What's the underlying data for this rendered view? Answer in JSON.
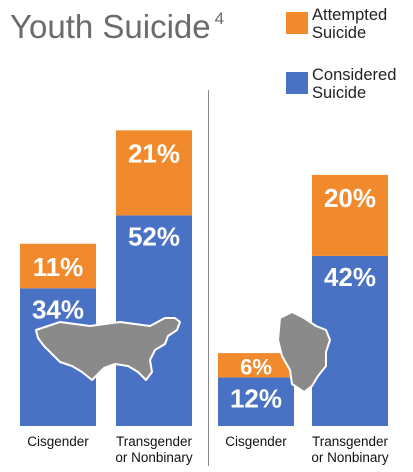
{
  "title": "Youth Suicide",
  "title_superscript": "4",
  "legend": [
    {
      "label_line1": "Attempted",
      "label_line2": "Suicide",
      "color": "#f08a2c"
    },
    {
      "label_line1": "Considered",
      "label_line2": "Suicide",
      "color": "#4a72c4"
    }
  ],
  "regions": [
    {
      "map_icon": "us-map-icon"
    },
    {
      "map_icon": "wisconsin-map-icon"
    }
  ],
  "chart_data": {
    "type": "bar",
    "title": "Youth Suicide",
    "groups": [
      {
        "region_icon": "us-map-icon",
        "categories": [
          "Cisgender",
          "Transgender or Nonbinary"
        ],
        "series": [
          {
            "name": "Considered Suicide",
            "values": [
              34,
              52
            ],
            "labels": [
              "34%",
              "52%"
            ]
          },
          {
            "name": "Attempted Suicide",
            "values": [
              11,
              21
            ],
            "labels": [
              "11%",
              "21%"
            ]
          }
        ]
      },
      {
        "region_icon": "wisconsin-map-icon",
        "categories": [
          "Cisgender",
          "Transgender or Nonbinary"
        ],
        "series": [
          {
            "name": "Considered Suicide",
            "values": [
              12,
              42
            ],
            "labels": [
              "12%",
              "42%"
            ]
          },
          {
            "name": "Attempted Suicide",
            "values": [
              6,
              20
            ],
            "labels": [
              "6%",
              "20%"
            ]
          }
        ]
      }
    ],
    "category_labels": [
      [
        "Cisgender"
      ],
      [
        "Transgender",
        "or Nonbinary"
      ],
      [
        "Cisgender"
      ],
      [
        "Transgender",
        "or Nonbinary"
      ]
    ],
    "colors": {
      "Attempted Suicide": "#f08a2c",
      "Considered Suicide": "#4a72c4"
    },
    "grid": false,
    "legend_position": "top-right"
  }
}
